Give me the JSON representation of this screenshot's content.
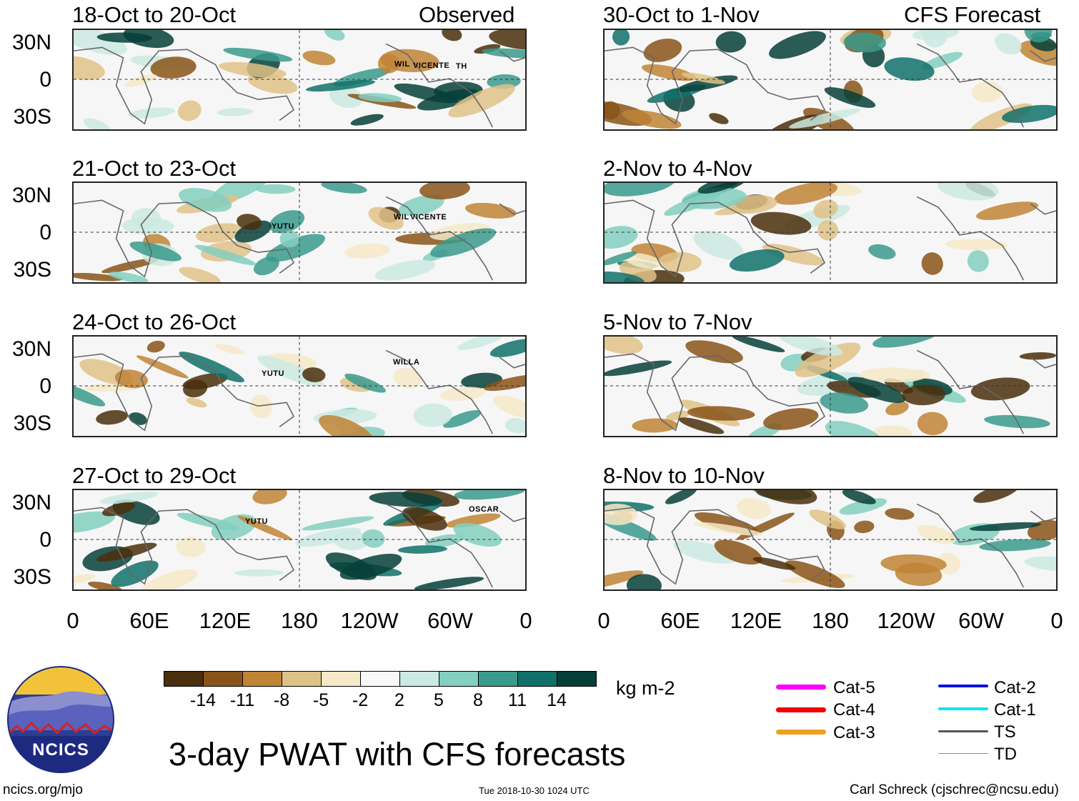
{
  "title": "3-day PWAT with CFS forecasts",
  "units": "kg m-2",
  "site": "ncics.org/mjo",
  "timestamp": "Tue 2018-10-30 1024 UTC",
  "author": "Carl Schreck (cjschrec@ncsu.edu)",
  "logo_text": "NCICS",
  "observed_label": "Observed",
  "forecast_label": "CFS Forecast",
  "lat_labels": [
    "30N",
    "0",
    "30S"
  ],
  "lon_labels": [
    "0",
    "60E",
    "120E",
    "180",
    "120W",
    "60W",
    "0"
  ],
  "colorbar": {
    "colors": [
      "#4a2f0c",
      "#8a5418",
      "#c08435",
      "#dfc287",
      "#f6e9c8",
      "#f8f8f8",
      "#cbeae2",
      "#83cfc0",
      "#3a9a8c",
      "#11716a",
      "#063f38"
    ],
    "ticks": [
      "-14",
      "-11",
      "-8",
      "-5",
      "-2",
      "2",
      "5",
      "8",
      "11",
      "14"
    ]
  },
  "legend": [
    {
      "label": "Cat-5",
      "color": "#ff00ff"
    },
    {
      "label": "Cat-4",
      "color": "#ee0000"
    },
    {
      "label": "Cat-3",
      "color": "#f0a020"
    },
    {
      "label": "Cat-2",
      "color": "#0010dd"
    },
    {
      "label": "Cat-1",
      "color": "#00e8f0"
    },
    {
      "label": "TS",
      "color": "#555555"
    },
    {
      "label": "TD",
      "color": "#888888"
    }
  ],
  "observed_panels": [
    {
      "title": "18-Oct to 20-Oct",
      "storms": [
        "WIL",
        "VICENTE",
        "TH"
      ]
    },
    {
      "title": "21-Oct to 23-Oct",
      "storms": [
        "YUTU",
        "WIL",
        "VICENTE"
      ]
    },
    {
      "title": "24-Oct to 26-Oct",
      "storms": [
        "YUTU",
        "WILLA"
      ]
    },
    {
      "title": "27-Oct to 29-Oct",
      "storms": [
        "YUTU",
        "OSCAR"
      ]
    }
  ],
  "forecast_panels": [
    {
      "title": "30-Oct to 1-Nov"
    },
    {
      "title": "2-Nov to 4-Nov"
    },
    {
      "title": "5-Nov to 7-Nov"
    },
    {
      "title": "8-Nov to 10-Nov"
    }
  ]
}
